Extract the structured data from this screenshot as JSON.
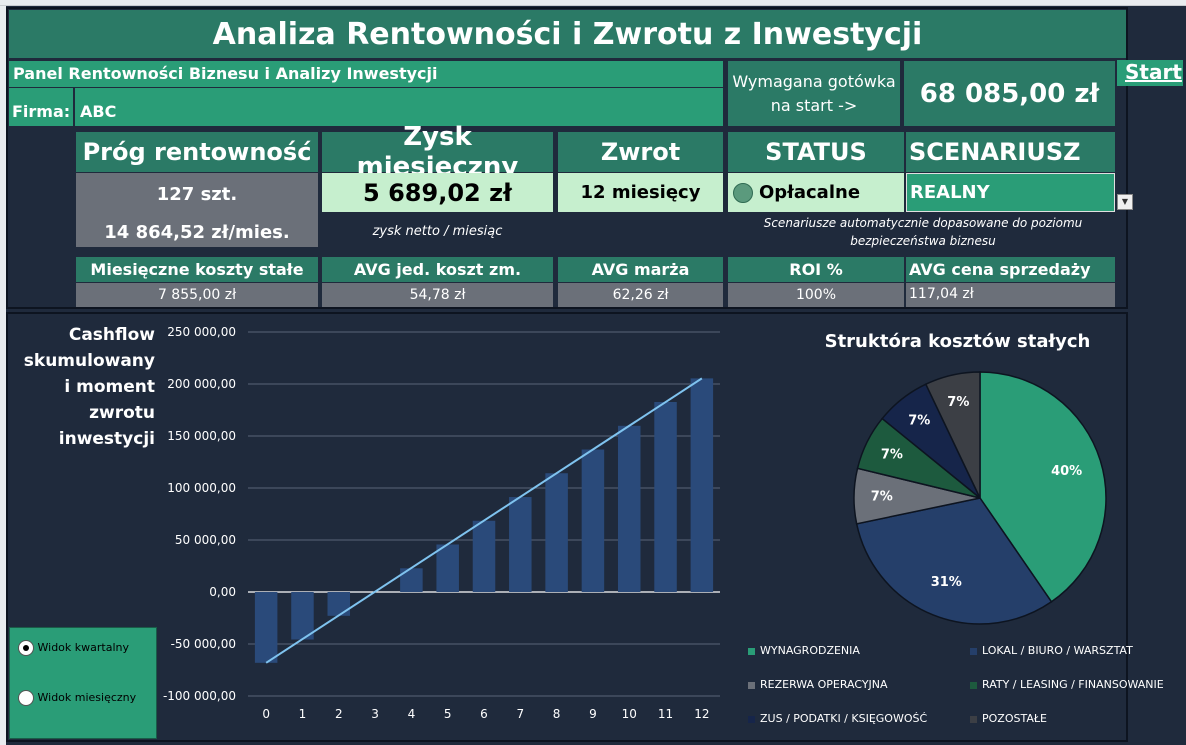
{
  "title": "Analiza Rentowności i Zwrotu z Inwestycji",
  "subtitle": "Panel Rentowności Biznesu i Analizy Inwestycji",
  "firma_label": "Firma:",
  "firma_value": "ABC",
  "cash_label_1": "Wymagana gotówka",
  "cash_label_2": "na start ->",
  "cash_value": "68 085,00 zł",
  "start_link": "Start",
  "kpi": {
    "prog_header": "Próg rentowność",
    "prog_units": "127 szt.",
    "prog_money": "14 864,52 zł/mies.",
    "zysk_header": "Zysk miesięczny",
    "zysk_value": "5 689,02 zł",
    "zysk_note": "zysk netto / miesiąc",
    "zwrot_header": "Zwrot",
    "zwrot_value": "12 miesięcy",
    "status_header": "STATUS",
    "status_value": "Opłacalne",
    "scen_header": "SCENARIUSZ",
    "scen_value": "REALNY",
    "scen_note_1": "Scenariusze automatycznie dopasowane do poziomu",
    "scen_note_2": "bezpieczeństwa biznesu"
  },
  "metrics": [
    {
      "label": "Miesięczne koszty stałe",
      "value": "7 855,00 zł"
    },
    {
      "label": "AVG jed. koszt zm.",
      "value": "54,78 zł"
    },
    {
      "label": "AVG marża",
      "value": "62,26 zł"
    },
    {
      "label": "ROI %",
      "value": "100%"
    },
    {
      "label": "AVG cena sprzedaży",
      "value": "117,04 zł"
    }
  ],
  "cashflow_title_lines": [
    "Cashflow",
    "skumulowany",
    "i moment",
    "zwrotu",
    "inwestycji"
  ],
  "view_options": {
    "quarterly": "Widok kwartalny",
    "monthly": "Widok miesięczny"
  },
  "chart_data": [
    {
      "type": "bar",
      "categories": [
        "0",
        "1",
        "2",
        "3",
        "4",
        "5",
        "6",
        "7",
        "8",
        "9",
        "10",
        "11",
        "12"
      ],
      "values": [
        -68085,
        -45700,
        -22900,
        0,
        22800,
        45700,
        68500,
        91300,
        114200,
        137000,
        159800,
        182700,
        205400
      ],
      "ylim": [
        -100000,
        250000
      ],
      "yticks": [
        "250 000,00",
        "200 000,00",
        "150 000,00",
        "100 000,00",
        "50 000,00",
        "0,00",
        "-50 000,00",
        "-100 000,00"
      ],
      "trend_line": true,
      "bar_color": "#2a4a7a",
      "line_color": "#7fc3ef"
    },
    {
      "type": "pie",
      "title": "Struktóra kosztów stałych",
      "series": [
        {
          "name": "WYNAGRODZENIA",
          "value": 40,
          "label": "40%",
          "color": "#2a9d77"
        },
        {
          "name": "LOKAL / BIURO / WARSZTAT",
          "value": 31,
          "label": "31%",
          "color": "#253f6a"
        },
        {
          "name": "REZERWA OPERACYJNA",
          "value": 7,
          "label": "7%",
          "color": "#6b7079"
        },
        {
          "name": "RATY / LEASING / FINANSOWANIE",
          "value": 7,
          "label": "7%",
          "color": "#1d5a3e"
        },
        {
          "name": "ZUS / PODATKI / KSIĘGOWOŚĆ",
          "value": 7,
          "label": "7%",
          "color": "#16254a"
        },
        {
          "name": "POZOSTAŁE",
          "value": 7,
          "label": "7%",
          "color": "#3c3f45"
        }
      ]
    }
  ]
}
